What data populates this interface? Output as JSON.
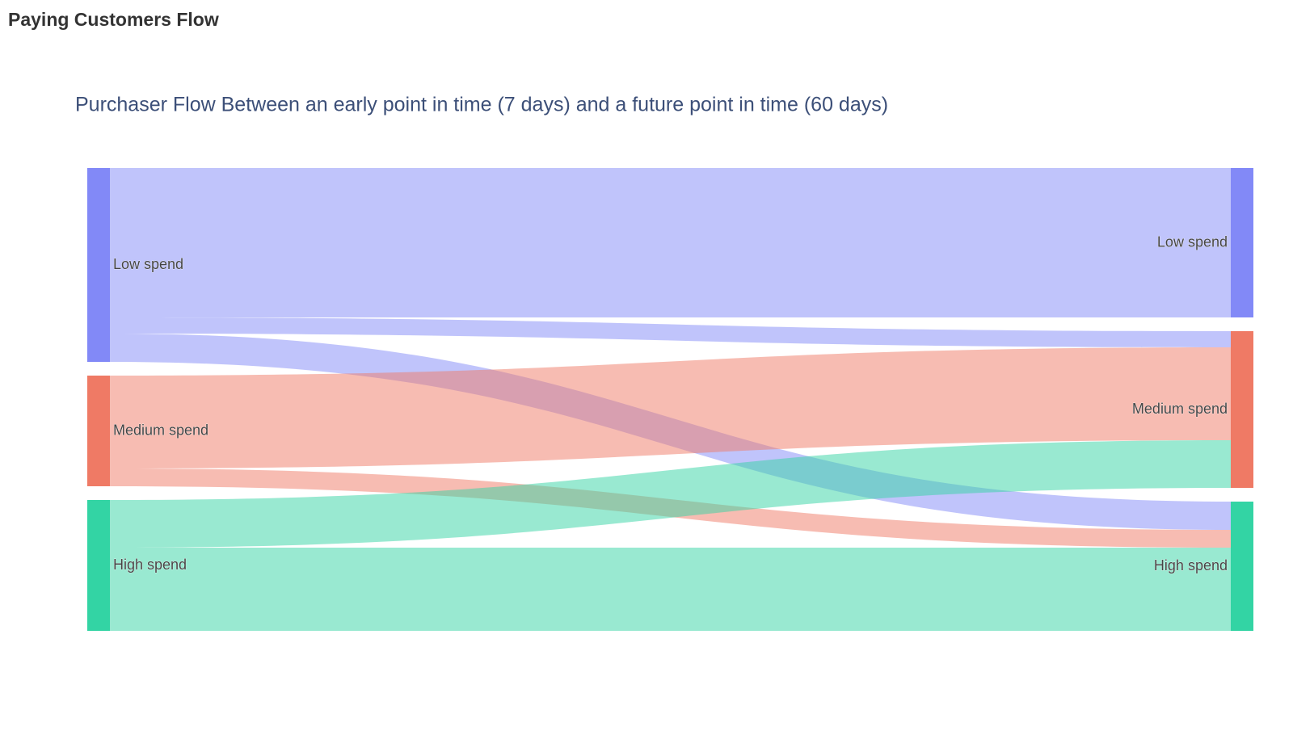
{
  "header": {
    "title": "Paying Customers Flow"
  },
  "chart_data": {
    "type": "sankey",
    "title": "Purchaser Flow Between an early point in time (7 days) and a future point in time (60 days)",
    "nodes": [
      {
        "label": "Low spend",
        "color": "#8289f7",
        "column": 0
      },
      {
        "label": "Medium spend",
        "color": "#ef7a65",
        "column": 0
      },
      {
        "label": "High spend",
        "color": "#33d4a4",
        "column": 0
      },
      {
        "label": "Low spend",
        "color": "#8289f7",
        "column": 1
      },
      {
        "label": "Medium spend",
        "color": "#ef7a65",
        "column": 1
      },
      {
        "label": "High spend",
        "color": "#33d4a4",
        "column": 1
      }
    ],
    "links": [
      {
        "source": 0,
        "target": 3,
        "value": 185
      },
      {
        "source": 0,
        "target": 4,
        "value": 20
      },
      {
        "source": 0,
        "target": 5,
        "value": 35
      },
      {
        "source": 1,
        "target": 4,
        "value": 115
      },
      {
        "source": 1,
        "target": 5,
        "value": 22
      },
      {
        "source": 2,
        "target": 4,
        "value": 59
      },
      {
        "source": 2,
        "target": 5,
        "value": 103
      }
    ]
  }
}
